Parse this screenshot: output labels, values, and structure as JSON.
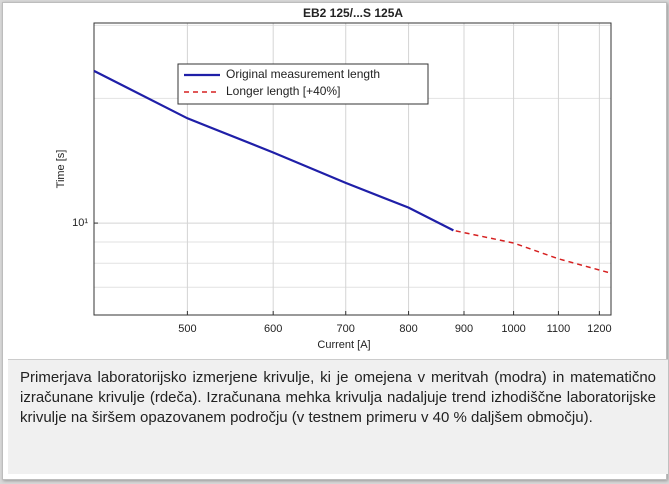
{
  "chart_data": {
    "type": "line",
    "title": "EB2 125/...S 125A",
    "xlabel": "Current [A]",
    "ylabel": "Time [s]",
    "xscale": "log",
    "yscale": "log",
    "grid": true,
    "legend": "upper left",
    "xlim": [
      410,
      1230
    ],
    "ylim": [
      6,
      30.4
    ],
    "xticks": [
      500,
      600,
      700,
      800,
      900,
      1000,
      1100,
      1200
    ],
    "yticks": [
      {
        "value": 10,
        "label": "10¹"
      }
    ],
    "yminor_ticks": [
      6,
      7,
      8,
      9,
      20,
      30
    ],
    "series": [
      {
        "name": "Original measurement length",
        "color": "#1f1fa8",
        "style": "solid",
        "x": [
          410,
          500,
          600,
          700,
          800,
          880
        ],
        "values": [
          23.3,
          17.9,
          14.8,
          12.5,
          10.9,
          9.6
        ]
      },
      {
        "name": "Longer length [+40%]",
        "color": "#d62020",
        "style": "dashed",
        "x": [
          410,
          500,
          600,
          700,
          800,
          880,
          1000,
          1100,
          1230
        ],
        "values": [
          23.3,
          17.9,
          14.8,
          12.5,
          10.9,
          9.6,
          8.95,
          8.2,
          7.57
        ]
      }
    ]
  },
  "caption": "Primerjava laboratorijsko izmerjene krivulje, ki je omejena v meritvah (modra) in matematično izračunane krivulje (rdeča). Izračunana mehka krivulja nadaljuje trend izhodiščne laboratorijske krivulje na širšem opazovanem področju (v testnem primeru v 40 % daljšem območju)."
}
